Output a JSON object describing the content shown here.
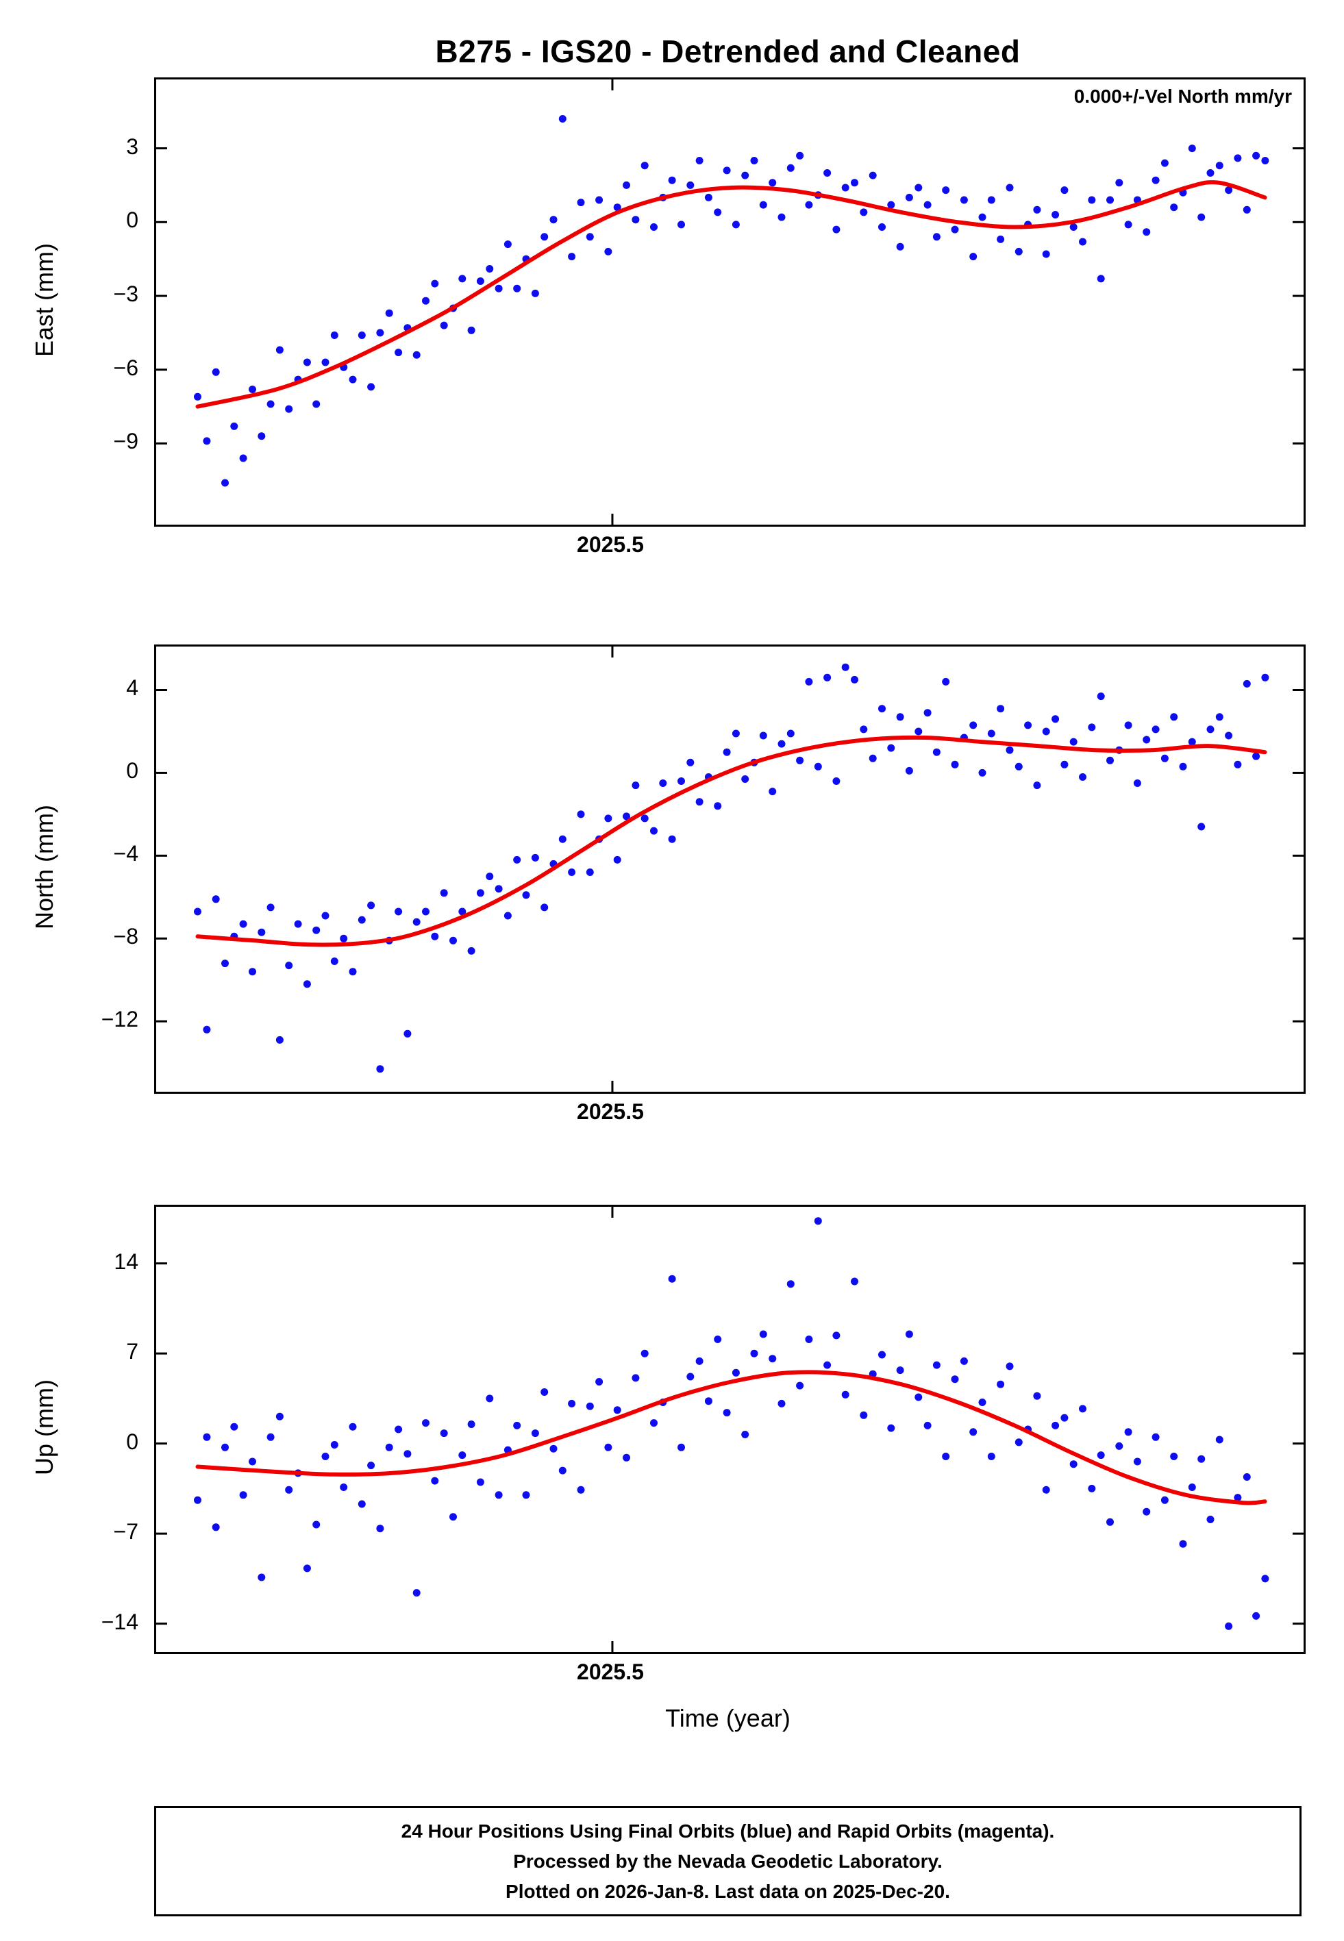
{
  "title": "B275 - IGS20 - Detrended and Cleaned",
  "annotation": "0.000+/-Vel North mm/yr",
  "footer": {
    "lines": [
      "24 Hour Positions Using Final Orbits (blue) and Rapid Orbits (magenta).",
      "Processed by the Nevada Geodetic Laboratory.",
      "Plotted on 2026-Jan-8. Last data on 2025-Dec-20."
    ]
  },
  "chart_data": {
    "type": "scatter",
    "title": "B275 - IGS20 - Detrended and Cleaned",
    "xlabel": "Time (year)",
    "x_tick_value": 2025.5,
    "x_tick_label": "2025.5",
    "xlim": [
      2025.17,
      2026.0
    ],
    "colors": {
      "dots": "#0d0df0",
      "curve": "#ef0000",
      "frame": "#000000"
    },
    "x": [
      2025.2,
      2025.2066,
      2025.2132,
      2025.2198,
      2025.2264,
      2025.233,
      2025.2396,
      2025.2462,
      2025.2528,
      2025.2594,
      2025.266,
      2025.2726,
      2025.2792,
      2025.2858,
      2025.2924,
      2025.299,
      2025.3056,
      2025.3122,
      2025.3188,
      2025.3254,
      2025.332,
      2025.3386,
      2025.3452,
      2025.3518,
      2025.3584,
      2025.365,
      2025.3716,
      2025.3782,
      2025.3848,
      2025.3914,
      2025.398,
      2025.4046,
      2025.4112,
      2025.4178,
      2025.4244,
      2025.431,
      2025.4376,
      2025.4442,
      2025.4508,
      2025.4574,
      2025.464,
      2025.4706,
      2025.4772,
      2025.4838,
      2025.4904,
      2025.497,
      2025.5036,
      2025.5102,
      2025.5168,
      2025.5234,
      2025.53,
      2025.5366,
      2025.5432,
      2025.5498,
      2025.5564,
      2025.563,
      2025.5696,
      2025.5762,
      2025.5828,
      2025.5894,
      2025.596,
      2025.6026,
      2025.6092,
      2025.6158,
      2025.6224,
      2025.629,
      2025.6356,
      2025.6422,
      2025.6488,
      2025.6554,
      2025.662,
      2025.6686,
      2025.6752,
      2025.6818,
      2025.6884,
      2025.695,
      2025.7016,
      2025.7082,
      2025.7148,
      2025.7214,
      2025.728,
      2025.7346,
      2025.7412,
      2025.7478,
      2025.7544,
      2025.761,
      2025.7676,
      2025.7742,
      2025.7808,
      2025.7874,
      2025.794,
      2025.8006,
      2025.8072,
      2025.8138,
      2025.8204,
      2025.827,
      2025.8336,
      2025.8402,
      2025.8468,
      2025.8534,
      2025.86,
      2025.8666,
      2025.8732,
      2025.8798,
      2025.8864,
      2025.893,
      2025.8996,
      2025.9062,
      2025.9128,
      2025.9194,
      2025.926,
      2025.9326,
      2025.9392,
      2025.9458,
      2025.9524,
      2025.959,
      2025.9656,
      2025.9722
    ],
    "panels": [
      {
        "name": "east",
        "ylabel": "East (mm)",
        "ylim": [
          -12.3,
          5.8
        ],
        "yticks": [
          3,
          0,
          -3,
          -6,
          -9
        ],
        "ytick_labels": [
          "3",
          "0",
          "−3",
          "−6",
          "−9"
        ],
        "y": [
          -7.1,
          -8.9,
          -6.1,
          -10.6,
          -8.3,
          -9.6,
          -6.8,
          -8.7,
          -7.4,
          -5.2,
          -7.6,
          -6.4,
          -5.7,
          -7.4,
          -5.7,
          -4.6,
          -5.9,
          -6.4,
          -4.6,
          -6.7,
          -4.5,
          -3.7,
          -5.3,
          -4.3,
          -5.4,
          -3.2,
          -2.5,
          -4.2,
          -3.5,
          -2.3,
          -4.4,
          -2.4,
          -1.9,
          -2.7,
          -0.9,
          -2.7,
          -1.5,
          -2.9,
          -0.6,
          0.1,
          4.2,
          -1.4,
          0.8,
          -0.6,
          0.9,
          -1.2,
          0.6,
          1.5,
          0.1,
          2.3,
          -0.2,
          1.0,
          1.7,
          -0.1,
          1.5,
          2.5,
          1.0,
          0.4,
          2.1,
          -0.1,
          1.9,
          2.5,
          0.7,
          1.6,
          0.2,
          2.2,
          2.7,
          0.7,
          1.1,
          2.0,
          -0.3,
          1.4,
          1.6,
          0.4,
          1.9,
          -0.2,
          0.7,
          -1.0,
          1.0,
          1.4,
          0.7,
          -0.6,
          1.3,
          -0.3,
          0.9,
          -1.4,
          0.2,
          0.9,
          -0.7,
          1.4,
          -1.2,
          -0.1,
          0.5,
          -1.3,
          0.3,
          1.3,
          -0.2,
          -0.8,
          0.9,
          -2.3,
          0.9,
          1.6,
          -0.1,
          0.9,
          -0.4,
          1.7,
          2.4,
          0.6,
          1.2,
          3.0,
          0.2,
          2.0,
          2.3,
          1.3,
          2.6,
          0.5,
          2.7,
          2.5
        ],
        "curve": {
          "x": [
            2025.2,
            2025.257,
            2025.299,
            2025.34,
            2025.381,
            2025.422,
            2025.463,
            2025.504,
            2025.545,
            2025.586,
            2025.627,
            2025.668,
            2025.709,
            2025.75,
            2025.791,
            2025.832,
            2025.873,
            2025.915,
            2025.939,
            2025.972
          ],
          "y": [
            -7.5,
            -6.8,
            -5.9,
            -4.8,
            -3.6,
            -2.2,
            -0.8,
            0.4,
            1.1,
            1.4,
            1.3,
            0.9,
            0.4,
            0.0,
            -0.2,
            0.0,
            0.6,
            1.4,
            1.6,
            1.0
          ]
        }
      },
      {
        "name": "north",
        "ylabel": "North (mm)",
        "ylim": [
          -15.4,
          6.1
        ],
        "yticks": [
          4,
          0,
          -4,
          -8,
          -12
        ],
        "ytick_labels": [
          "4",
          "0",
          "−4",
          "−8",
          "−12"
        ],
        "y": [
          -6.7,
          -12.4,
          -6.1,
          -9.2,
          -7.9,
          -7.3,
          -9.6,
          -7.7,
          -6.5,
          -12.9,
          -9.3,
          -7.3,
          -10.2,
          -7.6,
          -6.9,
          -9.1,
          -8.0,
          -9.6,
          -7.1,
          -6.4,
          -14.3,
          -8.1,
          -6.7,
          -12.6,
          -7.2,
          -6.7,
          -7.9,
          -5.8,
          -8.1,
          -6.7,
          -8.6,
          -5.8,
          -5.0,
          -5.6,
          -6.9,
          -4.2,
          -5.9,
          -4.1,
          -6.5,
          -4.4,
          -3.2,
          -4.8,
          -2.0,
          -4.8,
          -3.2,
          -2.2,
          -4.2,
          -2.1,
          -0.6,
          -2.2,
          -2.8,
          -0.5,
          -3.2,
          -0.4,
          0.5,
          -1.4,
          -0.2,
          -1.6,
          1.0,
          1.9,
          -0.3,
          0.5,
          1.8,
          -0.9,
          1.4,
          1.9,
          0.6,
          4.4,
          0.3,
          4.6,
          -0.4,
          5.1,
          4.5,
          2.1,
          0.7,
          3.1,
          1.2,
          2.7,
          0.1,
          2.0,
          2.9,
          1.0,
          4.4,
          0.4,
          1.7,
          2.3,
          0.0,
          1.9,
          3.1,
          1.1,
          0.3,
          2.3,
          -0.6,
          2.0,
          2.6,
          0.4,
          1.5,
          -0.2,
          2.2,
          3.7,
          0.6,
          1.1,
          2.3,
          -0.5,
          1.6,
          2.1,
          0.7,
          2.7,
          0.3,
          1.5,
          -2.6,
          2.1,
          2.7,
          1.8,
          0.4,
          4.3,
          0.8,
          4.6
        ],
        "curve": {
          "x": [
            2025.2,
            2025.241,
            2025.282,
            2025.323,
            2025.356,
            2025.397,
            2025.438,
            2025.479,
            2025.52,
            2025.561,
            2025.602,
            2025.643,
            2025.684,
            2025.726,
            2025.767,
            2025.808,
            2025.849,
            2025.89,
            2025.931,
            2025.972
          ],
          "y": [
            -7.9,
            -8.1,
            -8.3,
            -8.2,
            -7.8,
            -6.8,
            -5.4,
            -3.7,
            -2.0,
            -0.6,
            0.5,
            1.2,
            1.6,
            1.7,
            1.5,
            1.3,
            1.1,
            1.1,
            1.3,
            1.0
          ]
        }
      },
      {
        "name": "up",
        "ylabel": "Up (mm)",
        "ylim": [
          -16.2,
          18.4
        ],
        "yticks": [
          14,
          7,
          0,
          -7,
          -14
        ],
        "ytick_labels": [
          "14",
          "7",
          "0",
          "−7",
          "−14"
        ],
        "y": [
          -4.4,
          0.5,
          -6.5,
          -0.3,
          1.3,
          -4.0,
          -1.4,
          -10.4,
          0.5,
          2.1,
          -3.6,
          -2.3,
          -9.7,
          -6.3,
          -1.0,
          -0.1,
          -3.4,
          1.3,
          -4.7,
          -1.7,
          -6.6,
          -0.3,
          1.1,
          -0.8,
          -11.6,
          1.6,
          -2.9,
          0.8,
          -5.7,
          -0.9,
          1.5,
          -3.0,
          3.5,
          -4.0,
          -0.5,
          1.4,
          -4.0,
          0.8,
          4.0,
          -0.4,
          -2.1,
          3.1,
          -3.6,
          2.9,
          4.8,
          -0.3,
          2.6,
          -1.1,
          5.1,
          7.0,
          1.6,
          3.2,
          12.8,
          -0.3,
          5.2,
          6.4,
          3.3,
          8.1,
          2.4,
          5.5,
          0.7,
          7.0,
          8.5,
          6.6,
          3.1,
          12.4,
          4.5,
          8.1,
          17.3,
          6.1,
          8.4,
          3.8,
          12.6,
          2.2,
          5.4,
          6.9,
          1.2,
          5.7,
          8.5,
          3.6,
          1.4,
          6.1,
          -1.0,
          5.0,
          6.4,
          0.9,
          3.2,
          -1.0,
          4.6,
          6.0,
          0.1,
          1.1,
          3.7,
          -3.6,
          1.4,
          2.0,
          -1.6,
          2.7,
          -3.5,
          -0.9,
          -6.1,
          -0.2,
          0.9,
          -1.4,
          -5.3,
          0.5,
          -4.4,
          -1.0,
          -7.8,
          -3.4,
          -1.2,
          -5.9,
          0.3,
          -14.2,
          -4.2,
          -2.6,
          -13.4,
          -10.5
        ],
        "curve": {
          "x": [
            2025.2,
            2025.257,
            2025.299,
            2025.34,
            2025.381,
            2025.422,
            2025.463,
            2025.504,
            2025.545,
            2025.586,
            2025.627,
            2025.668,
            2025.709,
            2025.75,
            2025.791,
            2025.832,
            2025.873,
            2025.915,
            2025.956,
            2025.972
          ],
          "y": [
            -1.8,
            -2.2,
            -2.4,
            -2.3,
            -1.8,
            -0.9,
            0.5,
            2.0,
            3.6,
            4.8,
            5.5,
            5.4,
            4.6,
            3.2,
            1.4,
            -0.7,
            -2.6,
            -4.0,
            -4.6,
            -4.5
          ]
        }
      }
    ]
  }
}
